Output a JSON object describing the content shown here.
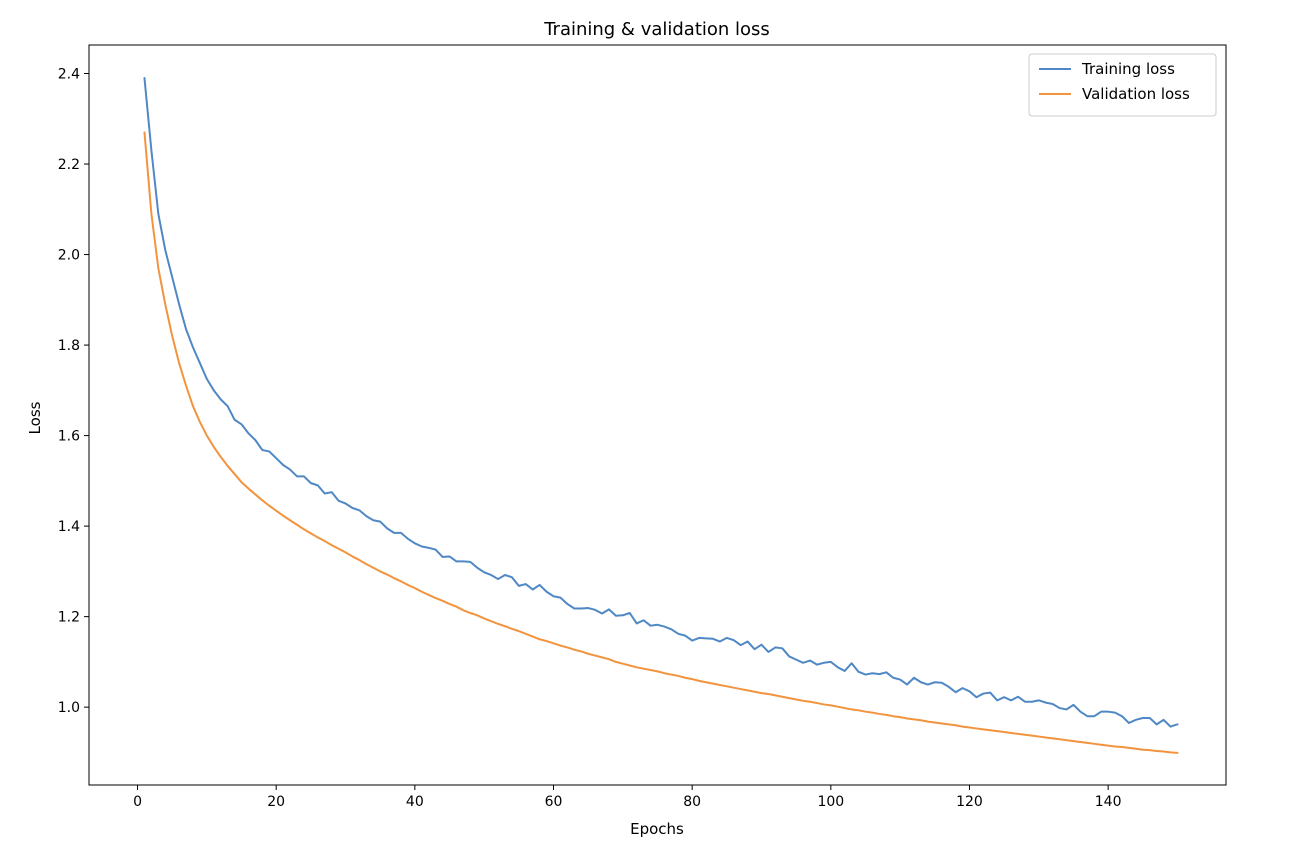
{
  "chart_data": {
    "type": "line",
    "title": "Training & validation loss",
    "xlabel": "Epochs",
    "ylabel": "Loss",
    "xlim": [
      -7,
      157
    ],
    "ylim": [
      0.828,
      2.463
    ],
    "x_ticks": [
      0,
      20,
      40,
      60,
      80,
      100,
      120,
      140
    ],
    "y_ticks": [
      1.0,
      1.2,
      1.4,
      1.6,
      1.8,
      2.0,
      2.2,
      2.4
    ],
    "grid": false,
    "legend_position": "top-right",
    "series": [
      {
        "name": "Training loss",
        "color": "#4f88c4",
        "x_start": 1,
        "x_step": 1,
        "values": [
          2.39,
          2.23,
          2.09,
          2.01,
          1.95,
          1.89,
          1.835,
          1.795,
          1.76,
          1.725,
          1.7,
          1.68,
          1.665,
          1.635,
          1.625,
          1.605,
          1.59,
          1.568,
          1.565,
          1.55,
          1.535,
          1.525,
          1.51,
          1.51,
          1.495,
          1.49,
          1.472,
          1.475,
          1.456,
          1.45,
          1.44,
          1.435,
          1.422,
          1.413,
          1.41,
          1.395,
          1.385,
          1.385,
          1.372,
          1.362,
          1.355,
          1.352,
          1.348,
          1.332,
          1.333,
          1.322,
          1.322,
          1.321,
          1.308,
          1.298,
          1.292,
          1.283,
          1.292,
          1.287,
          1.268,
          1.272,
          1.26,
          1.27,
          1.255,
          1.245,
          1.242,
          1.228,
          1.218,
          1.218,
          1.219,
          1.215,
          1.207,
          1.216,
          1.202,
          1.203,
          1.208,
          1.185,
          1.192,
          1.18,
          1.182,
          1.178,
          1.172,
          1.162,
          1.158,
          1.147,
          1.153,
          1.152,
          1.151,
          1.145,
          1.153,
          1.148,
          1.137,
          1.145,
          1.128,
          1.138,
          1.122,
          1.132,
          1.13,
          1.112,
          1.105,
          1.098,
          1.103,
          1.094,
          1.098,
          1.1,
          1.088,
          1.08,
          1.097,
          1.078,
          1.072,
          1.075,
          1.073,
          1.077,
          1.065,
          1.061,
          1.05,
          1.065,
          1.055,
          1.05,
          1.055,
          1.054,
          1.045,
          1.033,
          1.042,
          1.035,
          1.022,
          1.03,
          1.032,
          1.015,
          1.022,
          1.015,
          1.023,
          1.012,
          1.012,
          1.015,
          1.01,
          1.007,
          0.998,
          0.995,
          1.005,
          0.99,
          0.98,
          0.98,
          0.99,
          0.99,
          0.988,
          0.98,
          0.965,
          0.972,
          0.976,
          0.976,
          0.962,
          0.972,
          0.957,
          0.962
        ]
      },
      {
        "name": "Validation loss",
        "color": "#f2933e",
        "x_start": 1,
        "x_step": 1,
        "values": [
          2.27,
          2.09,
          1.97,
          1.89,
          1.82,
          1.76,
          1.71,
          1.665,
          1.63,
          1.6,
          1.575,
          1.553,
          1.533,
          1.515,
          1.497,
          1.483,
          1.47,
          1.457,
          1.445,
          1.434,
          1.423,
          1.413,
          1.403,
          1.393,
          1.384,
          1.375,
          1.367,
          1.358,
          1.35,
          1.342,
          1.333,
          1.325,
          1.316,
          1.308,
          1.3,
          1.293,
          1.285,
          1.278,
          1.27,
          1.263,
          1.255,
          1.248,
          1.241,
          1.235,
          1.228,
          1.222,
          1.214,
          1.208,
          1.203,
          1.196,
          1.19,
          1.184,
          1.179,
          1.173,
          1.168,
          1.162,
          1.156,
          1.15,
          1.146,
          1.141,
          1.136,
          1.132,
          1.127,
          1.123,
          1.118,
          1.114,
          1.11,
          1.106,
          1.1,
          1.096,
          1.092,
          1.088,
          1.085,
          1.082,
          1.079,
          1.075,
          1.072,
          1.069,
          1.065,
          1.062,
          1.058,
          1.055,
          1.052,
          1.049,
          1.046,
          1.043,
          1.04,
          1.037,
          1.034,
          1.031,
          1.029,
          1.026,
          1.023,
          1.02,
          1.017,
          1.014,
          1.012,
          1.009,
          1.006,
          1.004,
          1.001,
          0.998,
          0.995,
          0.993,
          0.99,
          0.988,
          0.985,
          0.983,
          0.98,
          0.978,
          0.975,
          0.973,
          0.971,
          0.968,
          0.966,
          0.964,
          0.962,
          0.96,
          0.957,
          0.955,
          0.953,
          0.951,
          0.949,
          0.947,
          0.945,
          0.943,
          0.941,
          0.939,
          0.937,
          0.935,
          0.933,
          0.931,
          0.929,
          0.927,
          0.925,
          0.923,
          0.921,
          0.919,
          0.917,
          0.915,
          0.913,
          0.912,
          0.91,
          0.908,
          0.906,
          0.905,
          0.903,
          0.902,
          0.9,
          0.899
        ]
      }
    ]
  }
}
